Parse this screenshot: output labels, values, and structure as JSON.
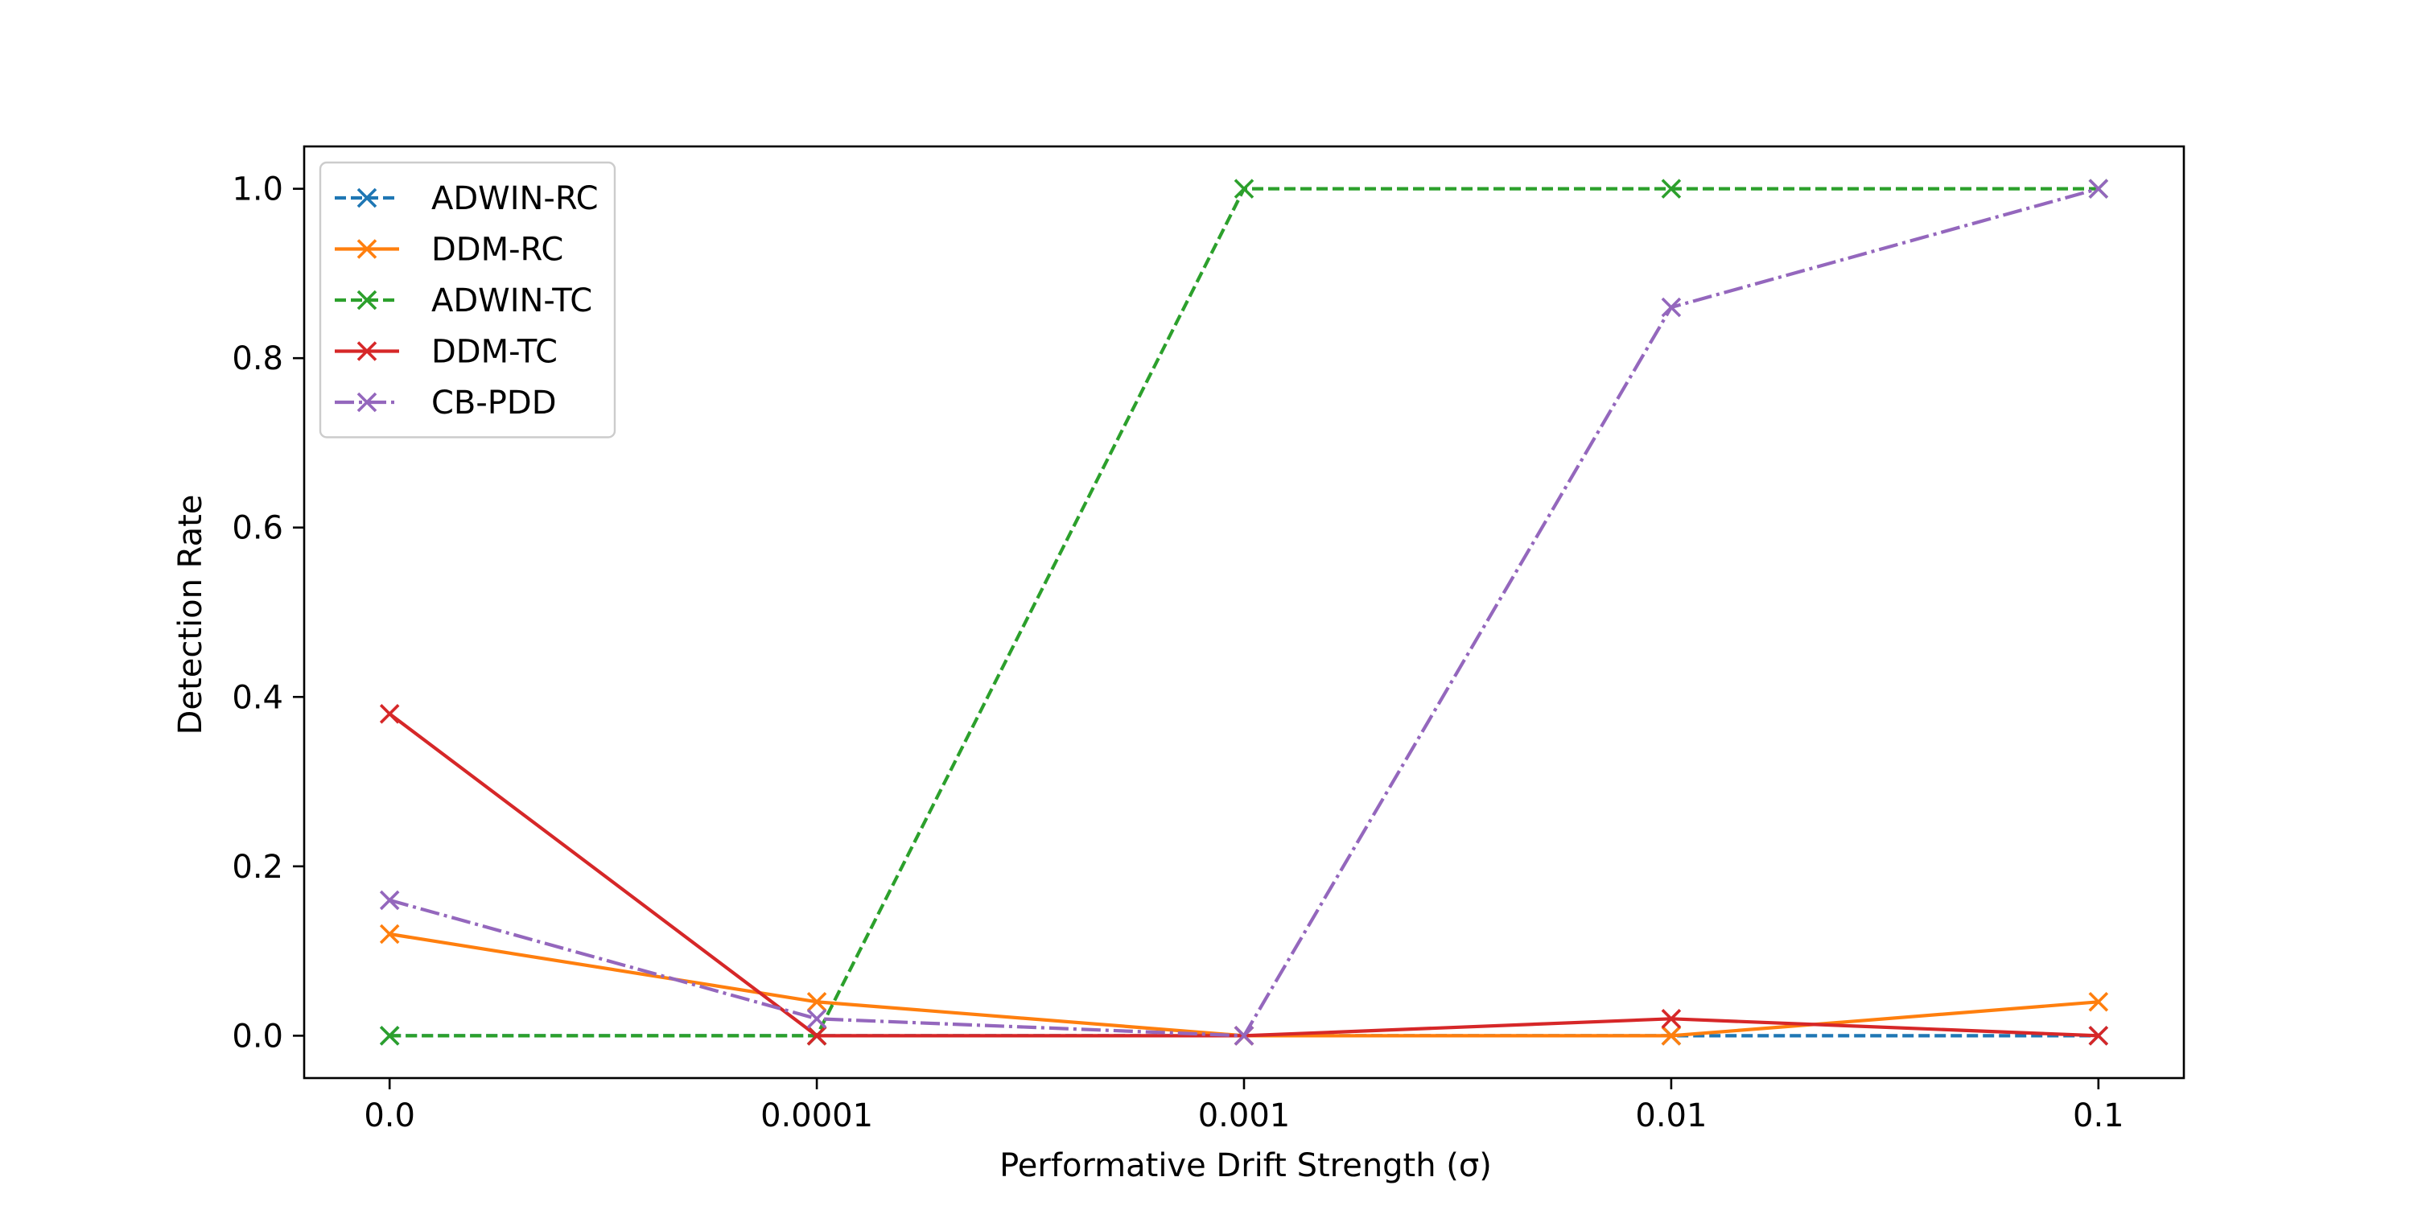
{
  "chart_data": {
    "type": "line",
    "title": "",
    "xlabel": "Performative Drift Strength (σ)",
    "ylabel": "Detection Rate",
    "categories": [
      "0.0",
      "0.0001",
      "0.001",
      "0.01",
      "0.1"
    ],
    "xlim": [
      -0.2,
      4.2
    ],
    "ylim": [
      -0.05,
      1.05
    ],
    "yticks": [
      "0.0",
      "0.2",
      "0.4",
      "0.6",
      "0.8",
      "1.0"
    ],
    "grid": false,
    "legend_position": "top-left",
    "series": [
      {
        "name": "ADWIN-RC",
        "values": [
          0.0,
          0.0,
          0.0,
          0.0,
          0.0
        ],
        "color": "#1f77b4",
        "linestyle": "dashed",
        "marker": "x"
      },
      {
        "name": "DDM-RC",
        "values": [
          0.12,
          0.04,
          0.0,
          0.0,
          0.04
        ],
        "color": "#ff7f0e",
        "linestyle": "solid",
        "marker": "x"
      },
      {
        "name": "ADWIN-TC",
        "values": [
          0.0,
          0.0,
          1.0,
          1.0,
          1.0
        ],
        "color": "#2ca02c",
        "linestyle": "dashed",
        "marker": "x"
      },
      {
        "name": "DDM-TC",
        "values": [
          0.38,
          0.0,
          0.0,
          0.02,
          0.0
        ],
        "color": "#d62728",
        "linestyle": "solid",
        "marker": "x"
      },
      {
        "name": "CB-PDD",
        "values": [
          0.16,
          0.02,
          0.0,
          0.86,
          1.0
        ],
        "color": "#9467bd",
        "linestyle": "dashdot",
        "marker": "x"
      }
    ]
  }
}
